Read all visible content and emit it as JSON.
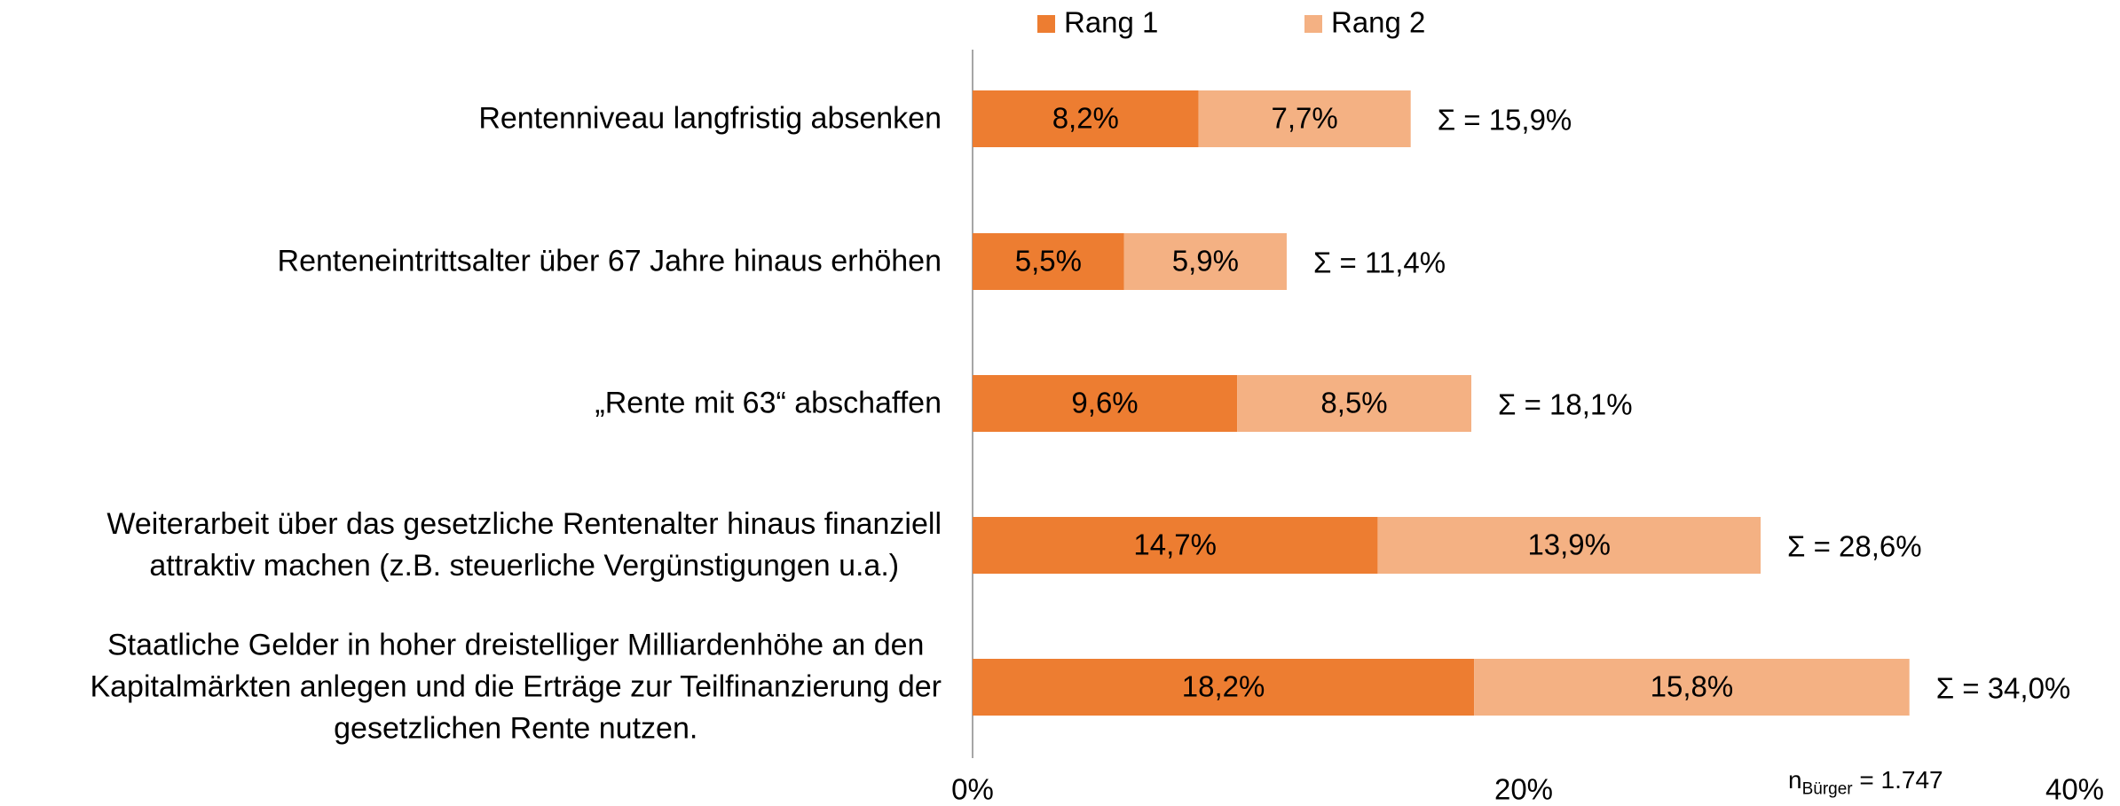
{
  "chart_data": {
    "type": "stacked-bar-horizontal",
    "categories": [
      "Rentenniveau langfristig absenken",
      "Renteneintrittsalter über 67 Jahre hinaus erhöhen",
      "„Rente mit 63“ abschaffen",
      "Weiterarbeit über das gesetzliche Rentenalter hinaus finanziell\nattraktiv machen (z.B. steuerliche Vergünstigungen u.a.)",
      "Staatliche Gelder in hoher dreistelliger Milliardenhöhe an den\nKapitalmärkten anlegen und die Erträge zur Teilfinanzierung der\ngesetzlichen Rente nutzen."
    ],
    "series": [
      {
        "name": "Rang 1",
        "color": "#ed7d31",
        "values": [
          8.2,
          5.5,
          9.6,
          14.7,
          18.2
        ],
        "value_labels": [
          "8,2%",
          "5,5%",
          "9,6%",
          "14,7%",
          "18,2%"
        ]
      },
      {
        "name": "Rang 2",
        "color": "#f4b183",
        "values": [
          7.7,
          5.9,
          8.5,
          13.9,
          15.8
        ],
        "value_labels": [
          "7,7%",
          "5,9%",
          "8,5%",
          "13,9%",
          "15,8%"
        ]
      }
    ],
    "total_labels": [
      "Σ = 15,9%",
      "Σ = 11,4%",
      "Σ = 18,1%",
      "Σ = 28,6%",
      "Σ = 34,0%"
    ],
    "xlim": [
      0,
      40
    ],
    "xticks": [
      {
        "value": 0,
        "label": "0%"
      },
      {
        "value": 20,
        "label": "20%"
      },
      {
        "value": 40,
        "label": "40%"
      }
    ],
    "note": {
      "main": "n",
      "subscript": "Bürger",
      "rest": " = 1.747"
    },
    "legend": "top"
  }
}
